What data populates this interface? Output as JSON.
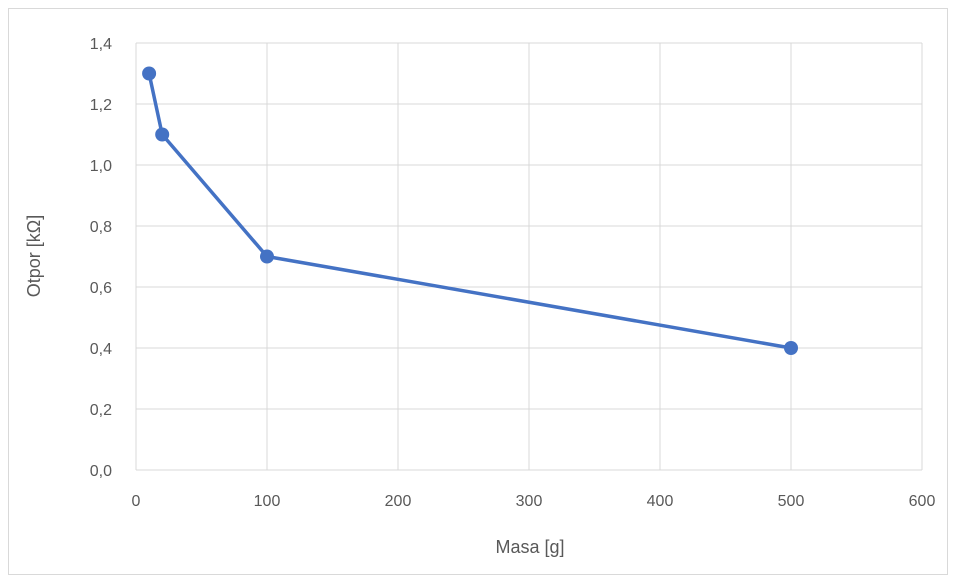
{
  "chart_data": {
    "type": "line",
    "xlabel": "Masa [g]",
    "ylabel": "Otpor [kΩ]",
    "xlim": [
      0,
      600
    ],
    "ylim": [
      0,
      1.4
    ],
    "x_ticks": [
      "0",
      "100",
      "200",
      "300",
      "400",
      "500",
      "600"
    ],
    "y_ticks": [
      "0,0",
      "0,2",
      "0,4",
      "0,6",
      "0,8",
      "1,0",
      "1,2",
      "1,4"
    ],
    "grid": true,
    "legend": "none",
    "series": [
      {
        "x": [
          10,
          20,
          100,
          500
        ],
        "y": [
          1.3,
          1.1,
          0.7,
          0.4
        ],
        "color": "#4472c4",
        "marker": "circle"
      }
    ]
  }
}
